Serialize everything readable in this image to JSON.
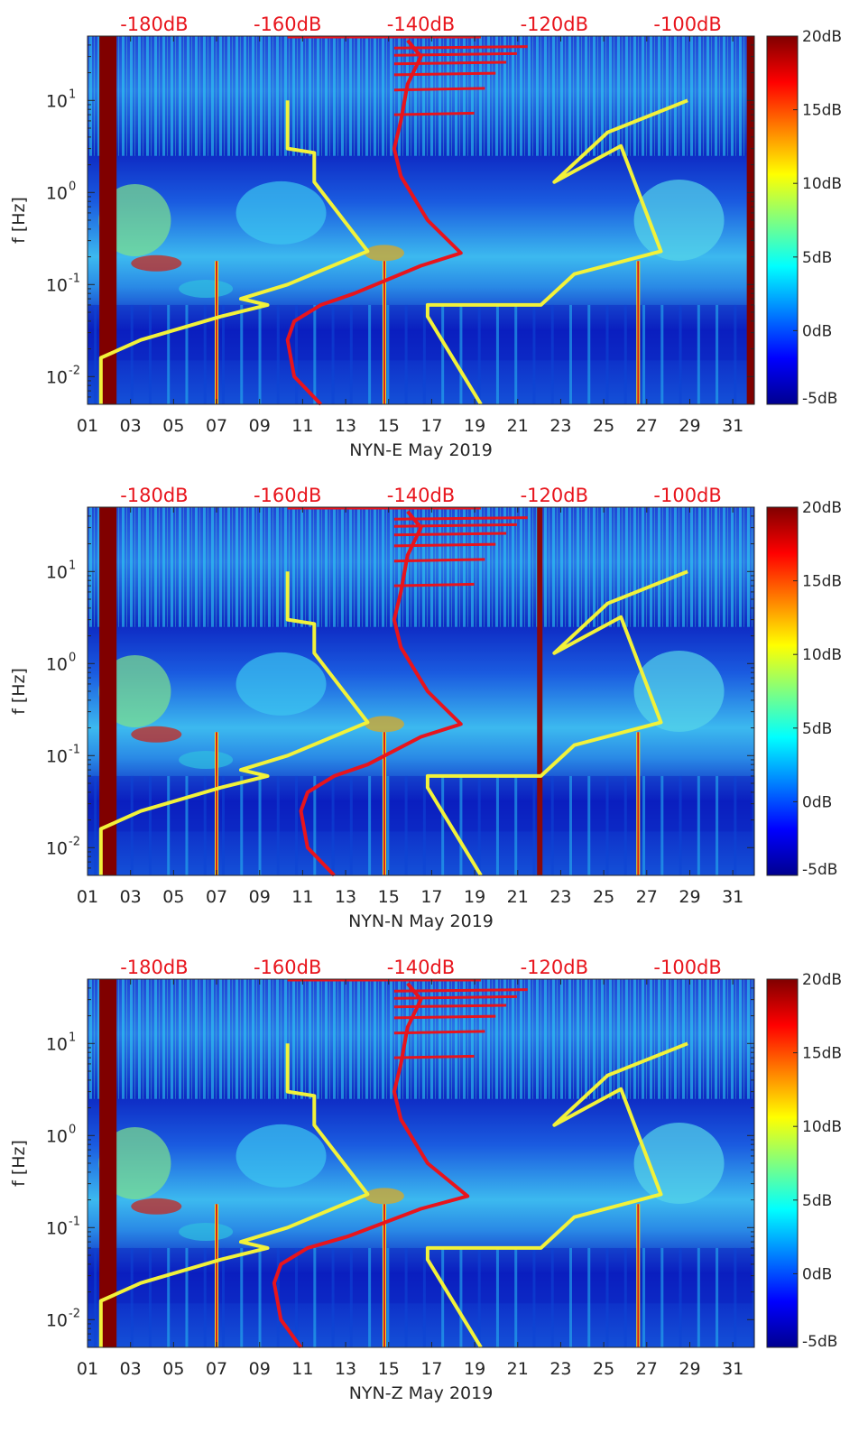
{
  "chart_data": [
    {
      "type": "heatmap",
      "title": "",
      "xlabel": "NYN-E May 2019",
      "ylabel": "f [Hz]",
      "x_ticks": [
        "01",
        "03",
        "05",
        "07",
        "09",
        "11",
        "13",
        "15",
        "17",
        "19",
        "21",
        "23",
        "25",
        "27",
        "29",
        "31"
      ],
      "y_ticks": [
        {
          "value": 0.01,
          "base": "10",
          "exp": "-2"
        },
        {
          "value": 0.1,
          "base": "10",
          "exp": "-1"
        },
        {
          "value": 1,
          "base": "10",
          "exp": "0"
        },
        {
          "value": 10,
          "base": "10",
          "exp": "1"
        }
      ],
      "ylim": [
        0.005,
        50
      ],
      "xlim": [
        1,
        32
      ],
      "top_axis_ticks": [
        "-180dB",
        "-160dB",
        "-140dB",
        "-120dB",
        "-100dB"
      ],
      "top_axis_range_db": [
        -190,
        -90
      ],
      "colorbar": {
        "min": -5,
        "max": 20,
        "ticks": [
          "20dB",
          "15dB",
          "10dB",
          "5dB",
          "0dB",
          "-5dB"
        ]
      },
      "yellow_line_1": {
        "db": [
          -188,
          -188,
          -182,
          -170,
          -163,
          -167,
          -160,
          -148,
          -156,
          -156,
          -160,
          -160
        ],
        "freq": [
          0.005,
          0.016,
          0.025,
          0.045,
          0.06,
          0.07,
          0.1,
          0.23,
          1.3,
          2.7,
          3.0,
          10
        ]
      },
      "yellow_line_2": {
        "db": [
          -131,
          -139,
          -139,
          -122,
          -117,
          -104,
          -110,
          -120,
          -112,
          -100
        ],
        "freq": [
          0.005,
          0.045,
          0.06,
          0.06,
          0.13,
          0.23,
          3.2,
          1.3,
          4.5,
          10
        ]
      },
      "red_line": {
        "db": [
          -155,
          -159,
          -160,
          -159,
          -155,
          -150,
          -140,
          -134,
          -139,
          -143,
          -144,
          -143,
          -142,
          -140,
          -142
        ],
        "freq": [
          0.005,
          0.01,
          0.025,
          0.04,
          0.06,
          0.08,
          0.16,
          0.22,
          0.5,
          1.5,
          3.0,
          6.0,
          15.0,
          30.0,
          45.0
        ]
      }
    },
    {
      "type": "heatmap",
      "title": "",
      "xlabel": "NYN-N May 2019",
      "ylabel": "f [Hz]",
      "x_ticks": [
        "01",
        "03",
        "05",
        "07",
        "09",
        "11",
        "13",
        "15",
        "17",
        "19",
        "21",
        "23",
        "25",
        "27",
        "29",
        "31"
      ],
      "y_ticks": [
        {
          "value": 0.01,
          "base": "10",
          "exp": "-2"
        },
        {
          "value": 0.1,
          "base": "10",
          "exp": "-1"
        },
        {
          "value": 1,
          "base": "10",
          "exp": "0"
        },
        {
          "value": 10,
          "base": "10",
          "exp": "1"
        }
      ],
      "ylim": [
        0.005,
        50
      ],
      "xlim": [
        1,
        32
      ],
      "top_axis_ticks": [
        "-180dB",
        "-160dB",
        "-140dB",
        "-120dB",
        "-100dB"
      ],
      "top_axis_range_db": [
        -190,
        -90
      ],
      "colorbar": {
        "min": -5,
        "max": 20,
        "ticks": [
          "20dB",
          "15dB",
          "10dB",
          "5dB",
          "0dB",
          "-5dB"
        ]
      },
      "yellow_line_1": {
        "db": [
          -188,
          -188,
          -182,
          -170,
          -163,
          -167,
          -160,
          -148,
          -156,
          -156,
          -160,
          -160
        ],
        "freq": [
          0.005,
          0.016,
          0.025,
          0.045,
          0.06,
          0.07,
          0.1,
          0.23,
          1.3,
          2.7,
          3.0,
          10
        ]
      },
      "yellow_line_2": {
        "db": [
          -131,
          -139,
          -139,
          -122,
          -117,
          -104,
          -110,
          -120,
          -112,
          -100
        ],
        "freq": [
          0.005,
          0.045,
          0.06,
          0.06,
          0.13,
          0.23,
          3.2,
          1.3,
          4.5,
          10
        ]
      },
      "red_line": {
        "db": [
          -153,
          -157,
          -158,
          -157,
          -153,
          -148,
          -140,
          -134,
          -139,
          -143,
          -144,
          -143,
          -142,
          -140,
          -142
        ],
        "freq": [
          0.005,
          0.01,
          0.025,
          0.04,
          0.06,
          0.08,
          0.16,
          0.22,
          0.5,
          1.5,
          3.0,
          6.0,
          15.0,
          30.0,
          45.0
        ]
      }
    },
    {
      "type": "heatmap",
      "title": "",
      "xlabel": "NYN-Z May 2019",
      "ylabel": "f [Hz]",
      "x_ticks": [
        "01",
        "03",
        "05",
        "07",
        "09",
        "11",
        "13",
        "15",
        "17",
        "19",
        "21",
        "23",
        "25",
        "27",
        "29",
        "31"
      ],
      "y_ticks": [
        {
          "value": 0.01,
          "base": "10",
          "exp": "-2"
        },
        {
          "value": 0.1,
          "base": "10",
          "exp": "-1"
        },
        {
          "value": 1,
          "base": "10",
          "exp": "0"
        },
        {
          "value": 10,
          "base": "10",
          "exp": "1"
        }
      ],
      "ylim": [
        0.005,
        50
      ],
      "xlim": [
        1,
        32
      ],
      "top_axis_ticks": [
        "-180dB",
        "-160dB",
        "-140dB",
        "-120dB",
        "-100dB"
      ],
      "top_axis_range_db": [
        -190,
        -90
      ],
      "colorbar": {
        "min": -5,
        "max": 20,
        "ticks": [
          "20dB",
          "15dB",
          "10dB",
          "5dB",
          "0dB",
          "-5dB"
        ]
      },
      "yellow_line_1": {
        "db": [
          -188,
          -188,
          -182,
          -170,
          -163,
          -167,
          -160,
          -148,
          -156,
          -156,
          -160,
          -160
        ],
        "freq": [
          0.005,
          0.016,
          0.025,
          0.045,
          0.06,
          0.07,
          0.1,
          0.23,
          1.3,
          2.7,
          3.0,
          10
        ]
      },
      "yellow_line_2": {
        "db": [
          -131,
          -139,
          -139,
          -122,
          -117,
          -104,
          -110,
          -120,
          -112,
          -100
        ],
        "freq": [
          0.005,
          0.045,
          0.06,
          0.06,
          0.13,
          0.23,
          3.2,
          1.3,
          4.5,
          10
        ]
      },
      "red_line": {
        "db": [
          -158,
          -161,
          -162,
          -161,
          -157,
          -151,
          -140,
          -133,
          -139,
          -143,
          -144,
          -143,
          -142,
          -140,
          -142
        ],
        "freq": [
          0.005,
          0.01,
          0.025,
          0.04,
          0.06,
          0.08,
          0.16,
          0.22,
          0.5,
          1.5,
          3.0,
          6.0,
          15.0,
          30.0,
          45.0
        ]
      }
    }
  ],
  "colors": {
    "curve_red": "#e8141c",
    "curve_yellow": "#f2f23a",
    "axis_text": "#262626"
  }
}
